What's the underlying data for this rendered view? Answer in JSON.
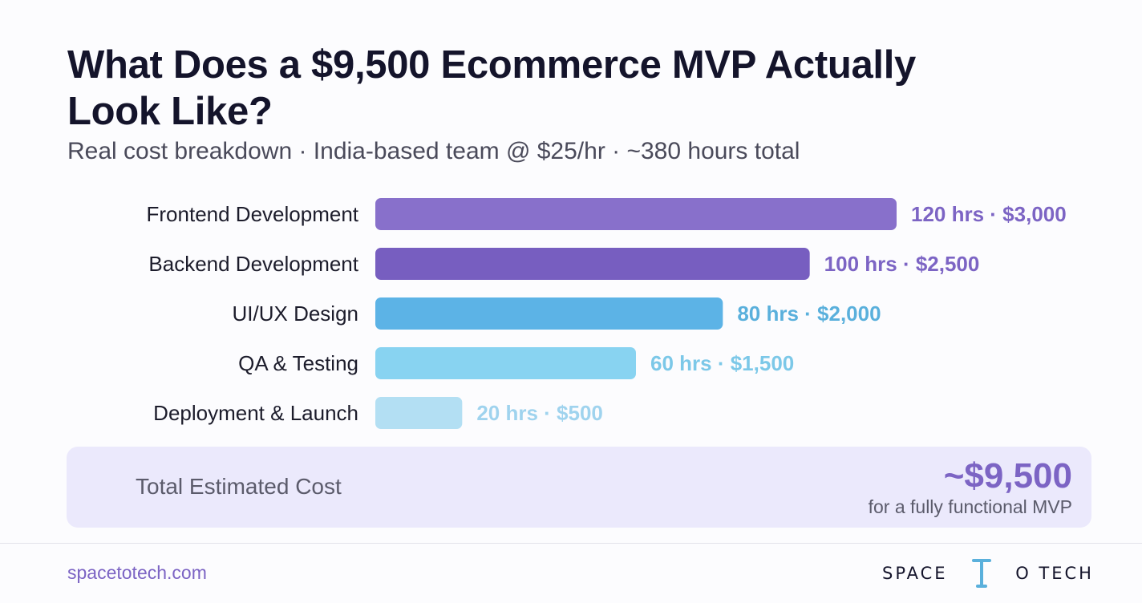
{
  "page": {
    "title": "What Does a $9,500 Ecommerce MVP Actually Look Like?",
    "subtitle": "Real cost breakdown · India-based team @ $25/hr · ~380 hours total"
  },
  "chart_data": {
    "type": "bar",
    "orientation": "horizontal",
    "categories": [
      "Frontend Development",
      "Backend Development",
      "UI/UX Design",
      "QA & Testing",
      "Deployment & Launch"
    ],
    "values": [
      120,
      100,
      80,
      60,
      20
    ],
    "data_labels": [
      "120 hrs · $3,000",
      "100 hrs · $2,500",
      "80 hrs · $2,000",
      "60 hrs · $1,500",
      "20 hrs · $500"
    ],
    "bar_colors": [
      "#8870cb",
      "#775ec0",
      "#5cb3e6",
      "#88d3f1",
      "#b3dff3"
    ],
    "label_colors": [
      "#7c64c4",
      "#7c64c4",
      "#5ab0dc",
      "#7cc8e8",
      "#9fd3ee"
    ],
    "grid": false,
    "legend": "none"
  },
  "total": {
    "label": "Total Estimated Cost",
    "value": "~$9,500",
    "note": "for a fully functional MVP"
  },
  "footer": {
    "site": "spacetotech.com",
    "brand_left": "SPACE",
    "brand_right": "O TECH",
    "logo_icon": "t-shaped-tower-icon"
  },
  "colors": {
    "accent": "#7c64c4",
    "title": "#14142b",
    "total_box": "#ebe9fc"
  }
}
